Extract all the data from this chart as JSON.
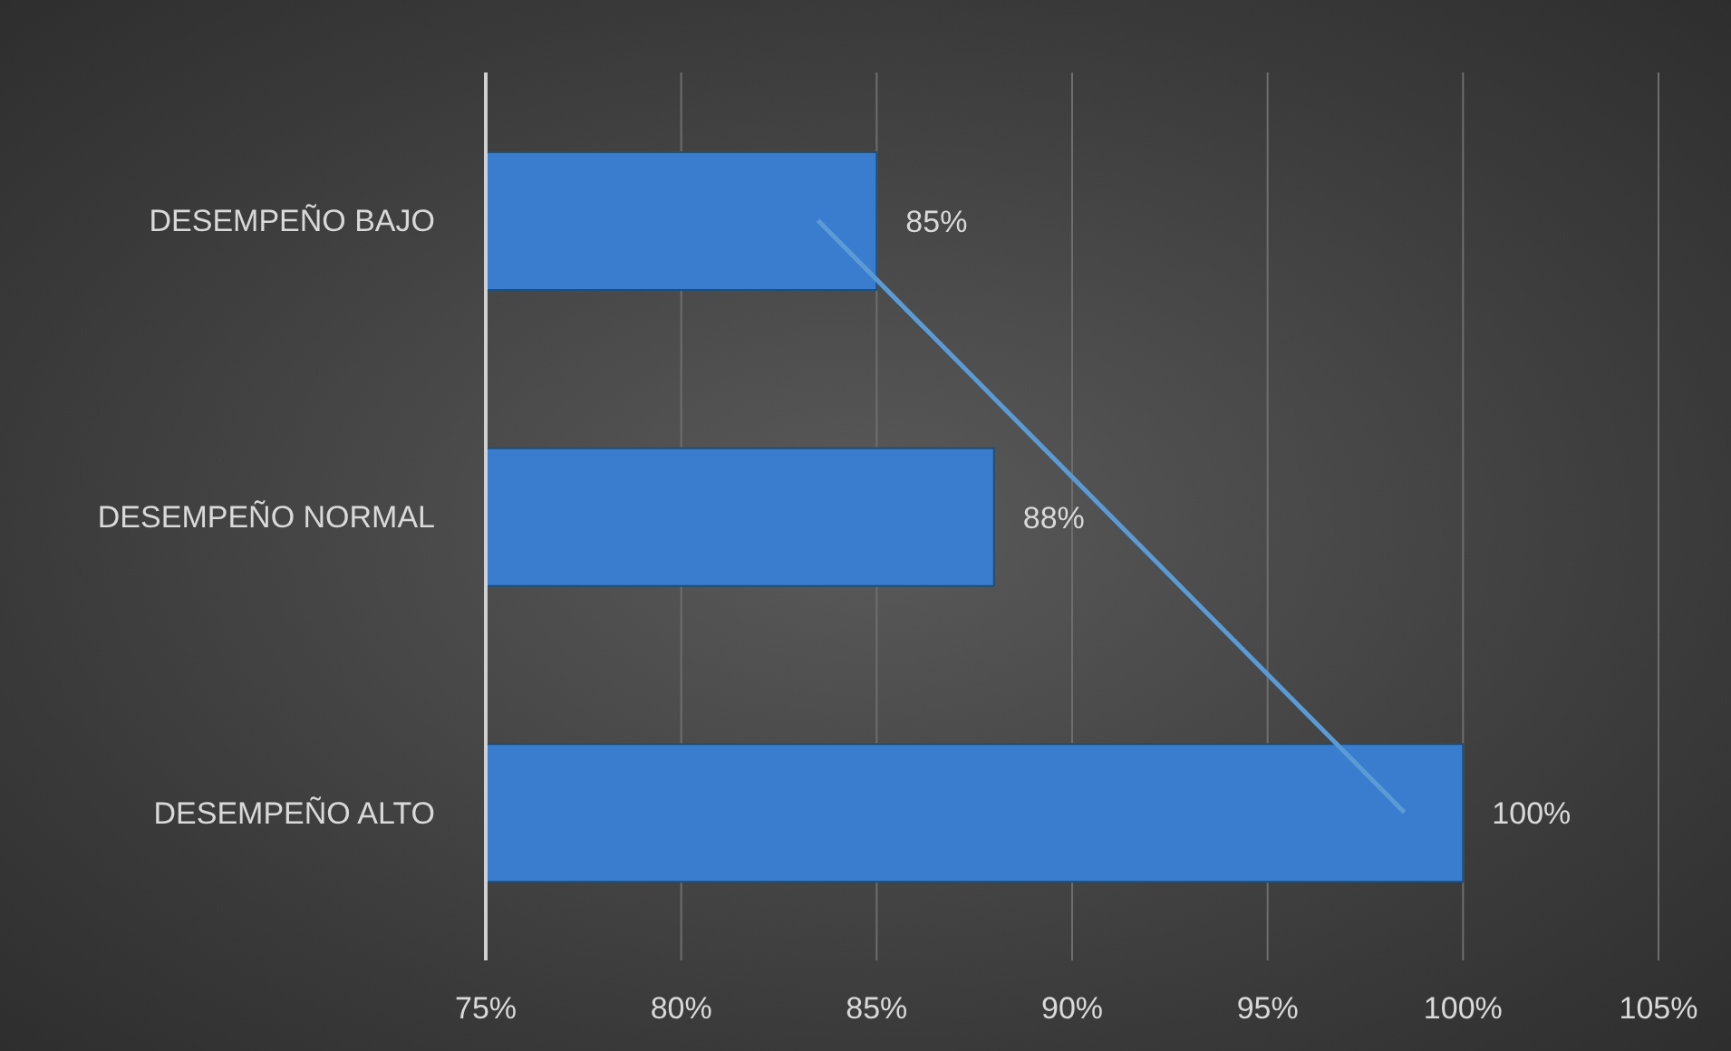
{
  "chart_data": {
    "type": "bar",
    "orientation": "horizontal",
    "categories": [
      "DESEMPEÑO BAJO",
      "DESEMPEÑO NORMAL",
      "DESEMPEÑO ALTO"
    ],
    "series": [
      {
        "color": "#3a7dcf",
        "values": [
          85,
          88,
          100
        ],
        "value_labels": [
          "85%",
          "88%",
          "100%"
        ]
      },
      {
        "type": "line",
        "color": "#5b9bd5",
        "values": [
          83.5,
          91,
          98.5
        ]
      }
    ],
    "xlim": [
      75,
      105
    ],
    "xticks": [
      {
        "value": 75,
        "label": "75%"
      },
      {
        "value": 80,
        "label": "80%"
      },
      {
        "value": 85,
        "label": "85%"
      },
      {
        "value": 90,
        "label": "90%"
      },
      {
        "value": 95,
        "label": "95%"
      },
      {
        "value": 100,
        "label": "100%"
      },
      {
        "value": 105,
        "label": "105%"
      }
    ],
    "grid": "x",
    "legend": false,
    "marker": "none"
  }
}
